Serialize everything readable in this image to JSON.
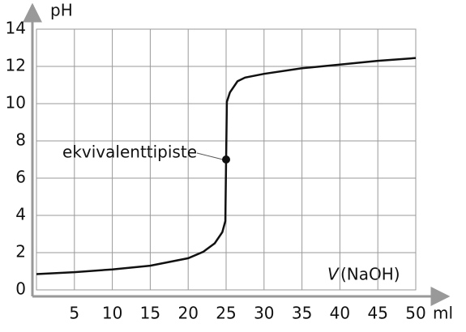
{
  "chart_data": {
    "type": "line",
    "y_label": "pH",
    "x_label_symbol": "V",
    "x_label_rest": "(NaOH)",
    "x_unit": "ml",
    "xlim": [
      0,
      50
    ],
    "ylim": [
      0,
      14
    ],
    "xticks": [
      5,
      10,
      15,
      20,
      25,
      30,
      35,
      40,
      45,
      50
    ],
    "yticks": [
      0,
      2,
      4,
      6,
      8,
      10,
      12,
      14
    ],
    "grid": true,
    "series": [
      {
        "color": "#111111",
        "x": [
          0,
          5,
          10,
          15,
          20,
          22,
          23.5,
          24.5,
          24.9,
          25,
          25.1,
          25.5,
          26.5,
          27.5,
          30,
          35,
          40,
          45,
          50
        ],
        "y": [
          0.85,
          0.95,
          1.1,
          1.3,
          1.7,
          2.05,
          2.5,
          3.1,
          3.7,
          7,
          10.1,
          10.6,
          11.2,
          11.4,
          11.6,
          11.9,
          12.1,
          12.3,
          12.45
        ]
      }
    ],
    "annotations": [
      {
        "text": "ekvivalenttipiste",
        "x": 25,
        "y": 7
      }
    ]
  }
}
